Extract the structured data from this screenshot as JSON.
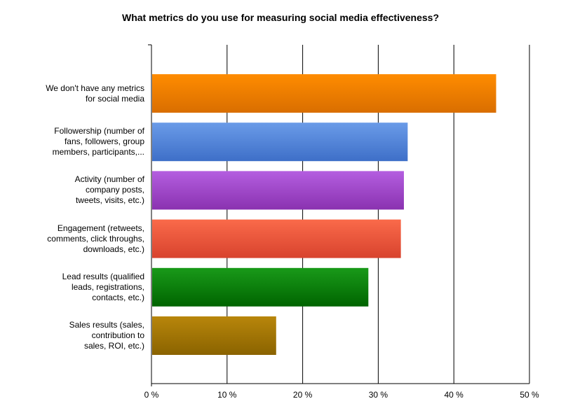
{
  "chart_data": {
    "type": "bar",
    "orientation": "horizontal",
    "title": "What metrics do you use for measuring social media effectiveness?",
    "xlabel": "",
    "ylabel": "",
    "xlim": [
      0,
      50
    ],
    "grid": true,
    "legend": "none",
    "categories": [
      [
        "We don't have any metrics",
        "for social media"
      ],
      [
        "Followership (number of",
        "fans, followers, group",
        "members, participants,..."
      ],
      [
        "Activity (number of",
        "company posts,",
        "tweets, visits, etc.)"
      ],
      [
        "Engagement (retweets,",
        "comments, click throughs,",
        "downloads, etc.)"
      ],
      [
        "Lead results (qualified",
        "leads, registrations,",
        "contacts, etc.)"
      ],
      [
        "Sales results (sales,",
        "contribution to",
        "sales, ROI, etc.)"
      ]
    ],
    "values": [
      45.5,
      33.8,
      33.3,
      32.9,
      28.6,
      16.4
    ],
    "bar_colors": [
      [
        "#ff8c00",
        "#d96e00"
      ],
      [
        "#6a9be8",
        "#3e6fc8"
      ],
      [
        "#b45ee0",
        "#8a32b0"
      ],
      [
        "#fa6a4a",
        "#d8432e"
      ],
      [
        "#199a19",
        "#006400"
      ],
      [
        "#b8860b",
        "#8a6300"
      ]
    ],
    "ticks": [
      "0 %",
      "10 %",
      "20 %",
      "30 %",
      "40 %",
      "50 %"
    ]
  }
}
